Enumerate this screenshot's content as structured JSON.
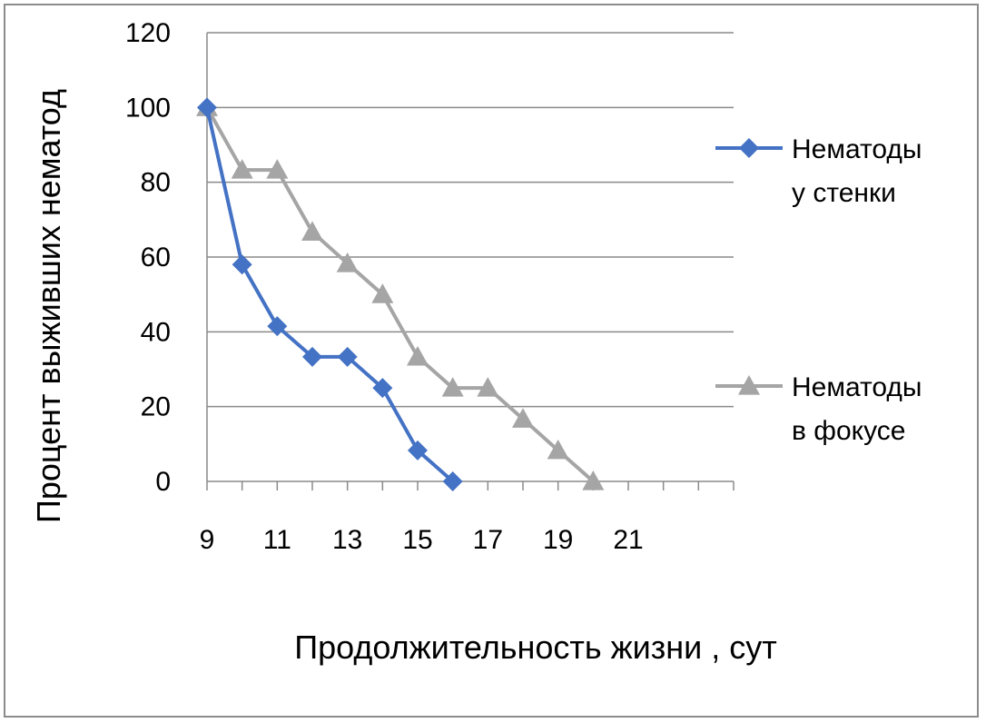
{
  "chart_data": {
    "type": "line",
    "xlabel": "Продолжительность жизни , сут",
    "ylabel": "Процент выживших нематод",
    "xlim": [
      9,
      24
    ],
    "ylim": [
      0,
      120
    ],
    "x_ticks": [
      "9",
      "11",
      "13",
      "15",
      "17",
      "19",
      "21"
    ],
    "y_ticks": [
      "0",
      "20",
      "40",
      "60",
      "80",
      "100",
      "120"
    ],
    "grid": "horizontal",
    "legend_position": "right",
    "series": [
      {
        "name": "Нематоды у стенки",
        "legend_lines": [
          "Нематоды",
          "у стенки"
        ],
        "color": "#4472C4",
        "marker": "diamond",
        "x": [
          9,
          10,
          11,
          12,
          13,
          14,
          15,
          16
        ],
        "y": [
          100,
          58,
          41.5,
          33.3,
          33.3,
          25,
          8.3,
          0
        ]
      },
      {
        "name": "Нематоды в фокусе",
        "legend_lines": [
          "Нематоды",
          "в фокусе"
        ],
        "color": "#A5A5A5",
        "marker": "triangle",
        "x": [
          9,
          10,
          11,
          12,
          13,
          14,
          15,
          16,
          17,
          18,
          19,
          20
        ],
        "y": [
          100,
          83.3,
          83.3,
          66.7,
          58.3,
          50,
          33.3,
          25,
          25,
          16.7,
          8.3,
          0
        ]
      }
    ]
  }
}
